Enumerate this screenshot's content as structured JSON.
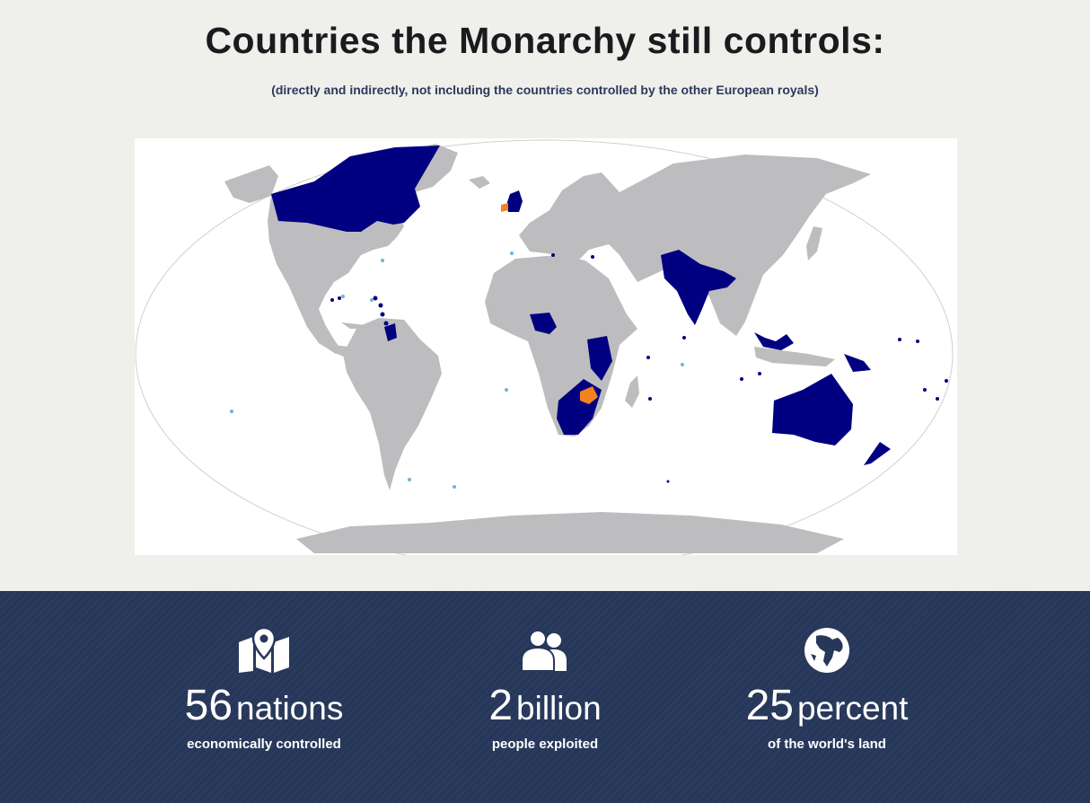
{
  "title": "Countries the Monarchy still controls:",
  "subtitle": "(directly and indirectly, not including the countries controlled by the other European royals)",
  "map": {
    "ocean_color": "#ffffff",
    "land_color": "#bdbdc0",
    "controlled_color": "#000080",
    "highlight_color": "#f58220",
    "territory_dot_color": "#6fb4d8"
  },
  "stats": [
    {
      "icon": "map-pin-icon",
      "number": "56",
      "unit": "nations",
      "caption": "economically controlled"
    },
    {
      "icon": "people-icon",
      "number": "2",
      "unit": "billion",
      "caption": "people exploited"
    },
    {
      "icon": "globe-icon",
      "number": "25",
      "unit": "percent",
      "caption": "of the world's land"
    }
  ],
  "colors": {
    "page_background": "#efefeb",
    "stats_background": "#26375a"
  }
}
